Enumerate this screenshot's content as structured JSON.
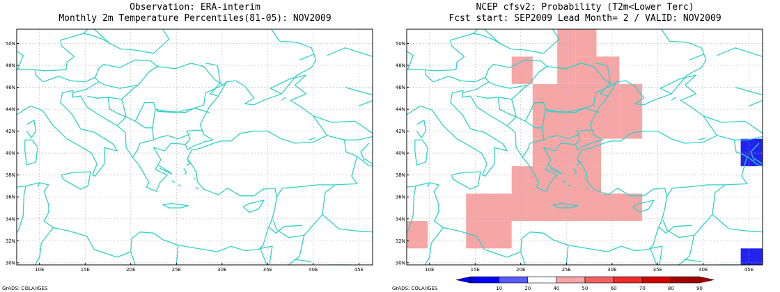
{
  "left_panel": {
    "title_line1": "Observation: ERA-interim",
    "title_line2": "Monthly 2m Temperature Percentiles(81-05): NOV2009",
    "credit": "GrADS: COLA/IGES"
  },
  "right_panel": {
    "title_line1": "NCEP cfsv2: Probability (T2m<Lower Terc)",
    "title_line2": "Fcst start: SEP2009  Lead Month= 2 / VALID: NOV2009",
    "credit": "GrADS: COLA/IGES"
  },
  "map_extent": {
    "lon": [
      7.5,
      46.5
    ],
    "lat": [
      29.8,
      51.3
    ]
  },
  "lon_ticks": [
    "10E",
    "15E",
    "20E",
    "25E",
    "30E",
    "35E",
    "40E",
    "45E"
  ],
  "lat_ticks": [
    "30N",
    "32N",
    "34N",
    "36N",
    "38N",
    "40N",
    "42N",
    "44N",
    "46N",
    "48N",
    "50N"
  ],
  "colors": {
    "coast": "#2fd0c8",
    "grid": "#b4b4b4",
    "pink": "#f7a6a6",
    "blue": "#2323f0"
  },
  "probability_cells": [
    {
      "lon": [
        26.0,
        28.3
      ],
      "lat": [
        48.8,
        51.3
      ],
      "level": "40-50"
    },
    {
      "lon": [
        24.0,
        26.0
      ],
      "lat": [
        46.3,
        51.3
      ],
      "level": "40-50"
    },
    {
      "lon": [
        19.0,
        21.3
      ],
      "lat": [
        46.3,
        48.8
      ],
      "level": "40-50"
    },
    {
      "lon": [
        26.0,
        30.8
      ],
      "lat": [
        46.3,
        48.8
      ],
      "level": "40-50"
    },
    {
      "lon": [
        21.3,
        30.8
      ],
      "lat": [
        41.3,
        46.3
      ],
      "level": "40-50"
    },
    {
      "lon": [
        30.8,
        33.3
      ],
      "lat": [
        41.3,
        46.3
      ],
      "level": "40-50"
    },
    {
      "lon": [
        21.3,
        28.8
      ],
      "lat": [
        38.8,
        41.3
      ],
      "level": "40-50"
    },
    {
      "lon": [
        19.0,
        28.8
      ],
      "lat": [
        36.3,
        38.8
      ],
      "level": "40-50"
    },
    {
      "lon": [
        14.0,
        33.3
      ],
      "lat": [
        33.8,
        36.3
      ],
      "level": "40-50"
    },
    {
      "lon": [
        14.0,
        19.0
      ],
      "lat": [
        31.3,
        33.8
      ],
      "level": "40-50"
    },
    {
      "lon": [
        7.5,
        9.8
      ],
      "lat": [
        31.3,
        33.8
      ],
      "level": "40-50"
    },
    {
      "lon": [
        44.1,
        46.5
      ],
      "lat": [
        38.8,
        41.3
      ],
      "level": "10-20"
    },
    {
      "lon": [
        44.1,
        46.5
      ],
      "lat": [
        29.8,
        31.3
      ],
      "level": "10-20"
    }
  ],
  "colorbar": {
    "labels": [
      "10",
      "20",
      "40",
      "50",
      "60",
      "70",
      "80",
      "90"
    ],
    "segment_colors": [
      "#0000ff",
      "#5a5aff",
      "#ffffff",
      "#f7a6a6",
      "#f06262",
      "#ee2a2a",
      "#d40000",
      "#a00000"
    ]
  }
}
